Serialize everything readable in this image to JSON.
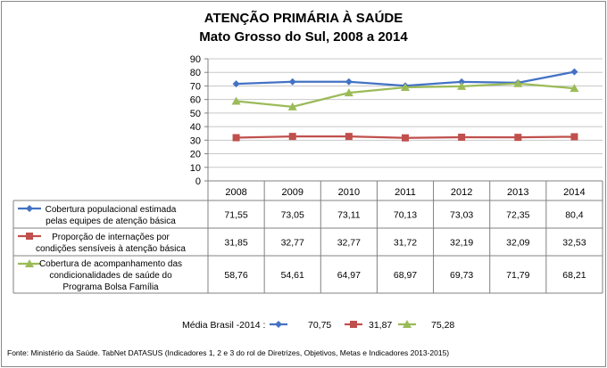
{
  "chart_data": {
    "type": "line",
    "title": "ATENÇÃO PRIMÁRIA À SAÚDE",
    "subtitle": "Mato Grosso do Sul, 2008 a 2014",
    "categories": [
      "2008",
      "2009",
      "2010",
      "2011",
      "2012",
      "2013",
      "2014"
    ],
    "yticks": [
      "0",
      "10",
      "20",
      "30",
      "40",
      "50",
      "60",
      "70",
      "80",
      "90"
    ],
    "ylim": [
      0,
      90
    ],
    "series": [
      {
        "name_lines": [
          "Cobertura  populacional estimada",
          "pelas equipes de atenção básica"
        ],
        "values": [
          71.55,
          73.05,
          73.11,
          70.13,
          73.03,
          72.35,
          80.4
        ],
        "labels": [
          "71,55",
          "73,05",
          "73,11",
          "70,13",
          "73,03",
          "72,35",
          "80,4"
        ],
        "color": "#4472C4",
        "marker": "diamond"
      },
      {
        "name_lines": [
          "Proporção de internações por",
          "condições sensíveis  à atenção básica"
        ],
        "values": [
          31.85,
          32.77,
          32.77,
          31.72,
          32.19,
          32.09,
          32.53
        ],
        "labels": [
          "31,85",
          "32,77",
          "32,77",
          "31,72",
          "32,19",
          "32,09",
          "32,53"
        ],
        "color": "#C0504D",
        "marker": "square"
      },
      {
        "name_lines": [
          "Cobertura de acompanhamento das",
          "condicionalidades de saúde do",
          "Programa Bolsa Família"
        ],
        "values": [
          58.76,
          54.61,
          64.97,
          68.97,
          69.73,
          71.79,
          68.21
        ],
        "labels": [
          "58,76",
          "54,61",
          "64,97",
          "68,97",
          "69,73",
          "71,79",
          "68,21"
        ],
        "color": "#9BBB59",
        "marker": "triangle"
      }
    ],
    "media": {
      "label": "Média Brasil -2014 :",
      "values": [
        "70,75",
        "31,87",
        "75,28"
      ]
    },
    "source": "Fonte: Ministério da Saúde. TabNet DATASUS (Indicadores 1, 2 e 3 do rol de Diretrizes, Objetivos, Metas e Indicadores 2013-2015)"
  }
}
